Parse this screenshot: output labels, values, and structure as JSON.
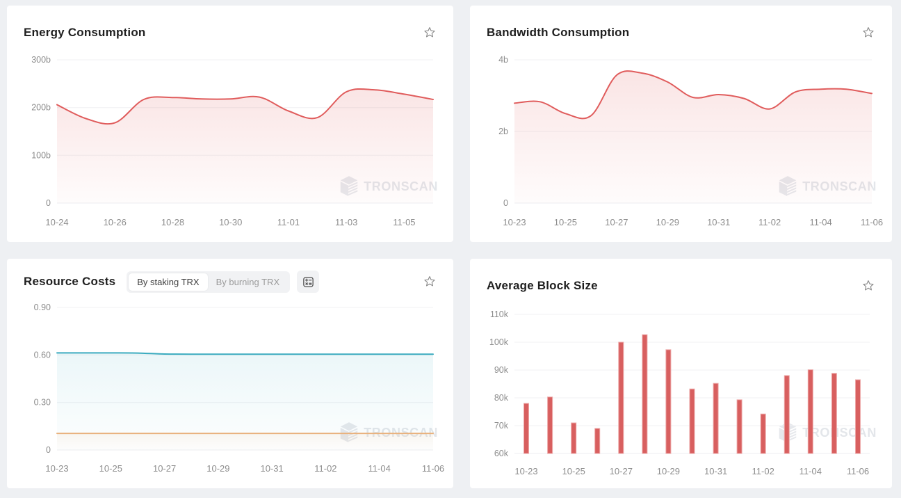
{
  "watermark": {
    "label": "TRONSCAN"
  },
  "panels": {
    "energy": {
      "title": "Energy Consumption"
    },
    "bandwidth": {
      "title": "Bandwidth Consumption"
    },
    "resource": {
      "title": "Resource Costs",
      "toggle": {
        "options": [
          "By staking TRX",
          "By burning TRX"
        ],
        "selected": "By staking TRX"
      }
    },
    "block": {
      "title": "Average Block Size"
    }
  },
  "colors": {
    "line_red": "#e05c5c",
    "bar_red": "#d85f5f",
    "bar_edge": "#eda7a7",
    "teal": "#3aabbf",
    "orange": "#e9b17c",
    "axis_label": "#8c8c8c",
    "grid": "#f0f1f3",
    "panel_bg": "#ffffff",
    "page_bg": "#eef0f3"
  },
  "chart_data": [
    {
      "id": "energy",
      "type": "area",
      "title": "Energy Consumption",
      "x": [
        "10-24",
        "10-25",
        "10-26",
        "10-27",
        "10-28",
        "10-29",
        "10-30",
        "10-31",
        "11-01",
        "11-02",
        "11-03",
        "11-04",
        "11-05",
        "11-06"
      ],
      "values": [
        206,
        177,
        168,
        217,
        221,
        218,
        218,
        222,
        193,
        179,
        233,
        237,
        228,
        217
      ],
      "unit": "billion",
      "ylim": [
        0,
        300
      ],
      "yticks": [
        {
          "v": 0,
          "label": "0"
        },
        {
          "v": 100,
          "label": "100b"
        },
        {
          "v": 200,
          "label": "200b"
        },
        {
          "v": 300,
          "label": "300b"
        }
      ],
      "xtick_labels": [
        "10-24",
        "10-26",
        "10-28",
        "10-30",
        "11-01",
        "11-03",
        "11-05"
      ],
      "color": "#e05c5c",
      "grid": true,
      "legend": false
    },
    {
      "id": "bandwidth",
      "type": "area",
      "title": "Bandwidth Consumption",
      "x": [
        "10-23",
        "10-24",
        "10-25",
        "10-26",
        "10-27",
        "10-28",
        "10-29",
        "10-30",
        "10-31",
        "11-01",
        "11-02",
        "11-03",
        "11-04",
        "11-05",
        "11-06"
      ],
      "values": [
        2.79,
        2.83,
        2.5,
        2.44,
        3.57,
        3.63,
        3.38,
        2.95,
        3.03,
        2.92,
        2.63,
        3.1,
        3.18,
        3.18,
        3.06
      ],
      "unit": "billion",
      "ylim": [
        0,
        4
      ],
      "yticks": [
        {
          "v": 0,
          "label": "0"
        },
        {
          "v": 2,
          "label": "2b"
        },
        {
          "v": 4,
          "label": "4b"
        }
      ],
      "xtick_labels": [
        "10-23",
        "10-25",
        "10-27",
        "10-29",
        "10-31",
        "11-02",
        "11-04",
        "11-06"
      ],
      "color": "#e05c5c",
      "grid": true,
      "legend": false
    },
    {
      "id": "resource",
      "type": "line",
      "title": "Resource Costs",
      "x": [
        "10-23",
        "10-24",
        "10-25",
        "10-26",
        "10-27",
        "10-28",
        "10-29",
        "10-30",
        "10-31",
        "11-01",
        "11-02",
        "11-03",
        "11-04",
        "11-05",
        "11-06"
      ],
      "series": [
        {
          "color": "#3aabbf",
          "values": [
            0.613,
            0.613,
            0.613,
            0.612,
            0.606,
            0.605,
            0.605,
            0.605,
            0.605,
            0.605,
            0.605,
            0.605,
            0.605,
            0.605,
            0.605
          ]
        },
        {
          "color": "#e9b17c",
          "values": [
            0.105,
            0.105,
            0.105,
            0.105,
            0.105,
            0.105,
            0.105,
            0.105,
            0.105,
            0.105,
            0.105,
            0.105,
            0.105,
            0.105,
            0.105
          ]
        }
      ],
      "ylim": [
        0,
        0.9
      ],
      "yticks": [
        {
          "v": 0,
          "label": "0"
        },
        {
          "v": 0.3,
          "label": "0.30"
        },
        {
          "v": 0.6,
          "label": "0.60"
        },
        {
          "v": 0.9,
          "label": "0.90"
        }
      ],
      "xtick_labels": [
        "10-23",
        "10-25",
        "10-27",
        "10-29",
        "10-31",
        "11-02",
        "11-04",
        "11-06"
      ],
      "grid": true,
      "legend": false
    },
    {
      "id": "block",
      "type": "bar",
      "title": "Average Block Size",
      "x": [
        "10-23",
        "10-24",
        "10-25",
        "10-26",
        "10-27",
        "10-28",
        "10-29",
        "10-30",
        "10-31",
        "11-01",
        "11-02",
        "11-03",
        "11-04",
        "11-05",
        "11-06"
      ],
      "values": [
        78,
        80.3,
        71,
        69,
        100,
        102.7,
        97.3,
        83.2,
        85.2,
        79.3,
        74.2,
        88,
        90.1,
        88.8,
        86.5
      ],
      "unit": "k bytes",
      "ylim": [
        60,
        110
      ],
      "yticks": [
        {
          "v": 60,
          "label": "60k"
        },
        {
          "v": 70,
          "label": "70k"
        },
        {
          "v": 80,
          "label": "80k"
        },
        {
          "v": 90,
          "label": "90k"
        },
        {
          "v": 100,
          "label": "100k"
        },
        {
          "v": 110,
          "label": "110k"
        }
      ],
      "xtick_labels": [
        "10-23",
        "10-25",
        "10-27",
        "10-29",
        "10-31",
        "11-02",
        "11-04",
        "11-06"
      ],
      "color": "#d85f5f",
      "bar_edge": "#eda7a7",
      "grid": true,
      "legend": false
    }
  ]
}
